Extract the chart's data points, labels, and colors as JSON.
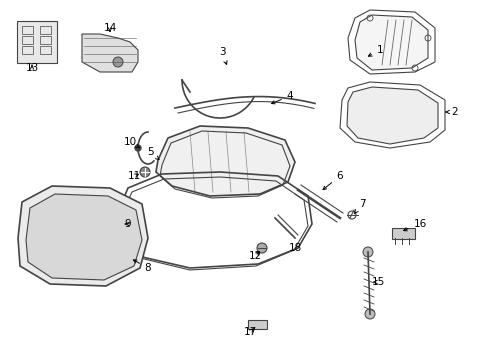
{
  "bg_color": "#ffffff",
  "line_color": "#444444",
  "label_color": "#000000"
}
